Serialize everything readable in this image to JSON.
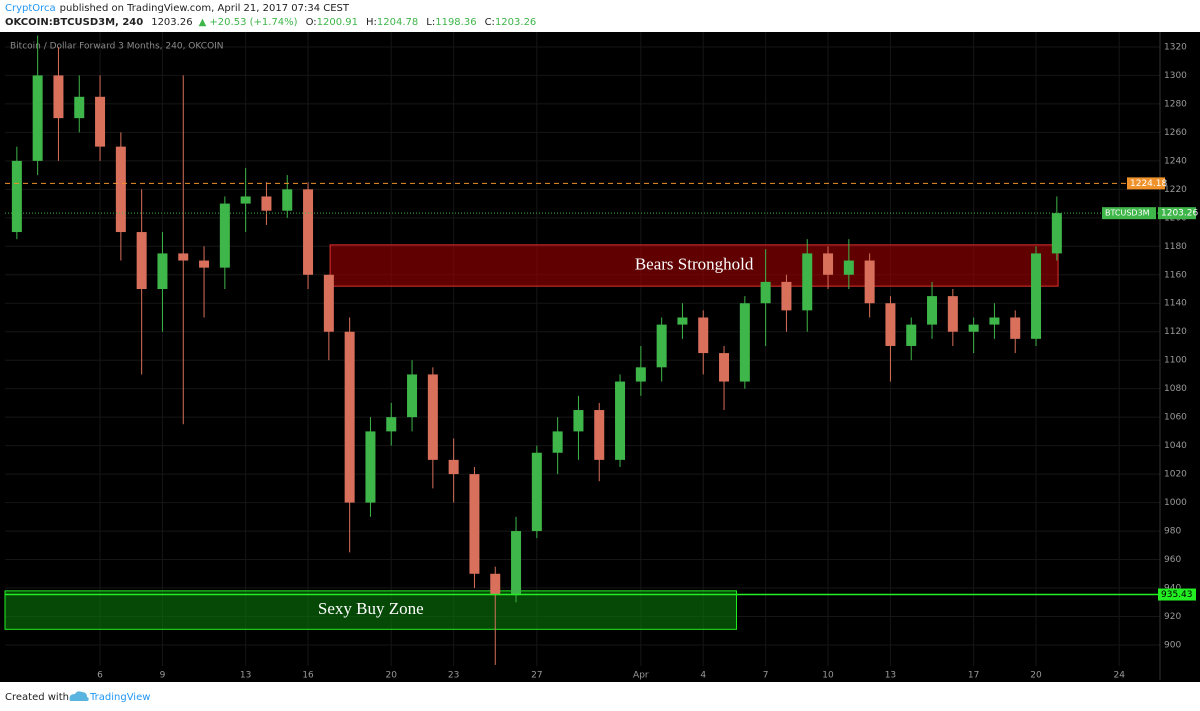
{
  "header": {
    "author": "CryptOrca",
    "published": "published on TradingView.com, April 21, 2017 07:34 CEST",
    "symbol": "OKCOIN:BTCUSD3M, 240",
    "last": 1203.26,
    "change": "▲ +20.53 (+1.74%)",
    "ohlc": [
      {
        "label": "O:",
        "value": 1200.91
      },
      {
        "label": "H:",
        "value": 1204.78
      },
      {
        "label": "L:",
        "value": 1198.36
      },
      {
        "label": "C:",
        "value": 1203.26
      }
    ]
  },
  "chart_data": {
    "type": "candlestick",
    "title": "Bitcoin / Dollar Forward 3 Months, 240, OKCOIN",
    "up_color": "#3fb64a",
    "down_color": "#d8705b",
    "grid": true,
    "x": [
      2,
      3,
      4,
      5,
      6,
      7,
      8,
      9,
      10,
      11,
      12,
      13,
      14,
      15,
      16,
      17,
      18,
      19,
      20,
      21,
      22,
      23,
      24,
      25,
      26,
      27,
      28,
      29,
      30,
      31,
      32,
      33,
      34,
      35,
      36,
      37,
      38,
      39,
      40,
      41,
      42,
      43,
      44,
      45,
      46,
      47,
      48,
      49,
      50,
      51,
      52
    ],
    "open": [
      1190,
      1240,
      1300,
      1270,
      1285,
      1250,
      1190,
      1150,
      1175,
      1170,
      1165,
      1210,
      1215,
      1205,
      1220,
      1160,
      1120,
      1000,
      1050,
      1060,
      1090,
      1030,
      1020,
      950,
      935,
      980,
      1035,
      1050,
      1065,
      1030,
      1085,
      1095,
      1125,
      1130,
      1105,
      1085,
      1140,
      1155,
      1135,
      1175,
      1160,
      1170,
      1140,
      1110,
      1125,
      1145,
      1120,
      1125,
      1130,
      1115,
      1175
    ],
    "high": [
      1250,
      1328,
      1320,
      1300,
      1300,
      1260,
      1220,
      1190,
      1300,
      1180,
      1215,
      1235,
      1225,
      1230,
      1225,
      1160,
      1130,
      1060,
      1070,
      1100,
      1095,
      1045,
      1025,
      955,
      990,
      1040,
      1060,
      1075,
      1070,
      1090,
      1110,
      1130,
      1140,
      1135,
      1110,
      1145,
      1178,
      1160,
      1185,
      1180,
      1185,
      1175,
      1145,
      1130,
      1155,
      1150,
      1130,
      1140,
      1135,
      1180,
      1215
    ],
    "low": [
      1185,
      1230,
      1240,
      1260,
      1240,
      1170,
      1090,
      1120,
      1055,
      1130,
      1150,
      1190,
      1195,
      1200,
      1150,
      1100,
      965,
      990,
      1040,
      1050,
      1010,
      1000,
      940,
      886,
      930,
      975,
      1020,
      1030,
      1015,
      1025,
      1075,
      1085,
      1115,
      1090,
      1065,
      1080,
      1110,
      1120,
      1120,
      1150,
      1150,
      1130,
      1085,
      1100,
      1115,
      1110,
      1105,
      1115,
      1105,
      1110,
      1170
    ],
    "close": [
      1240,
      1300,
      1270,
      1285,
      1250,
      1190,
      1150,
      1175,
      1170,
      1165,
      1210,
      1215,
      1205,
      1220,
      1160,
      1120,
      1000,
      1050,
      1060,
      1090,
      1030,
      1020,
      950,
      935,
      980,
      1035,
      1050,
      1065,
      1030,
      1085,
      1095,
      1125,
      1130,
      1105,
      1085,
      1140,
      1155,
      1135,
      1175,
      1160,
      1170,
      1140,
      1110,
      1125,
      1145,
      1120,
      1125,
      1130,
      1115,
      1175,
      1203.26
    ],
    "xlim": [
      1.43,
      56.96
    ],
    "xticks": [
      6,
      9,
      13,
      16,
      20,
      23,
      27,
      {
        "value": 32,
        "label": "Apr"
      },
      {
        "value": 35,
        "label": "4"
      },
      {
        "value": 38,
        "label": "7"
      },
      {
        "value": 41,
        "label": "10"
      },
      {
        "value": 44,
        "label": "13"
      },
      {
        "value": 48,
        "label": "17"
      },
      {
        "value": 51,
        "label": "20"
      },
      {
        "value": 55,
        "label": "24"
      }
    ],
    "ylim": [
      875.4,
      1330.5
    ],
    "yticks": [
      900,
      920,
      940,
      960,
      980,
      1000,
      1020,
      1040,
      1060,
      1080,
      1100,
      1120,
      1140,
      1160,
      1180,
      1200,
      1220,
      1240,
      1260,
      1280,
      1300,
      1320
    ],
    "zones": [
      {
        "label": "Bears Stronghold",
        "xrange": [
          17.06,
          52.06
        ],
        "yrange": [
          1152,
          1181
        ],
        "color": "#a00000",
        "border": "#e03030"
      },
      {
        "label": "Sexy Buy Zone",
        "xrange": [
          1.43,
          36.6
        ],
        "yrange": [
          911,
          938
        ],
        "color": "#0a7a0a",
        "border": "#22ee22"
      }
    ],
    "price_lines": [
      {
        "value": 1224.18,
        "color": "#f0922b",
        "style": "dashed"
      },
      {
        "value": 1203.26,
        "color": "#3fb64a",
        "style": "dotted",
        "name": "BTCUSD3M"
      },
      {
        "value": 935.43,
        "color": "#22ee22",
        "style": "solid"
      }
    ]
  },
  "footer": {
    "text": "Created with",
    "brand": "TradingView"
  }
}
